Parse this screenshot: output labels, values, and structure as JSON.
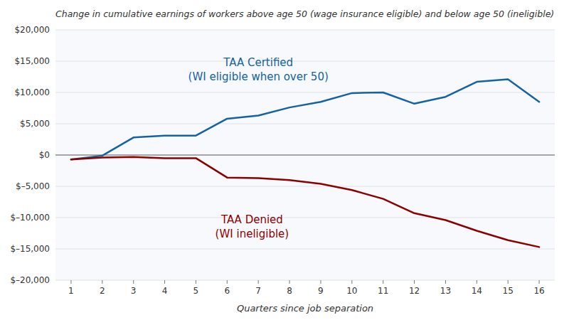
{
  "chart_data": {
    "type": "line",
    "title": "Change in cumulative earnings of workers above age 50 (wage insurance eligible) and below age 50 (ineligible)",
    "x_label": "Quarters since job separation",
    "x": [
      1,
      2,
      3,
      4,
      5,
      6,
      7,
      8,
      9,
      10,
      11,
      12,
      13,
      14,
      15,
      16
    ],
    "series": [
      {
        "color": "#1563A0",
        "values": [
          -700,
          -100,
          2800,
          3100,
          3100,
          5800,
          6300,
          7600,
          8500,
          9900,
          10000,
          8200,
          9300,
          11700,
          12100,
          8500
        ]
      },
      {
        "color": "#8B0000",
        "values": [
          -700,
          -400,
          -300,
          -500,
          -500,
          -3600,
          -3700,
          -4000,
          -4600,
          -5600,
          -7000,
          -9300,
          -10400,
          -12100,
          -13600,
          -14700
        ]
      }
    ],
    "annotations": [
      {
        "text": "TAA Certified\n(WI eligible when over 50)",
        "x": 7.0,
        "y": 11500,
        "color": "#1563A0"
      },
      {
        "text": "TAA Denied\n(WI ineligible)",
        "x": 6.8,
        "y": -9000,
        "color": "#8B0000"
      }
    ],
    "xlim": [
      0.5,
      16.5
    ],
    "xticks": [
      1,
      2,
      3,
      4,
      5,
      6,
      7,
      8,
      9,
      10,
      11,
      12,
      13,
      14,
      15,
      16
    ],
    "ylim": [
      -20000,
      20000
    ],
    "yticks": [
      {
        "value": -20000,
        "label": "$–20,000"
      },
      {
        "value": -15000,
        "label": "$–15,000"
      },
      {
        "value": -10000,
        "label": "$–10,000"
      },
      {
        "value": -5000,
        "label": "$–5,000"
      },
      {
        "value": 0,
        "label": "$0"
      },
      {
        "value": 5000,
        "label": "$5,000"
      },
      {
        "value": 10000,
        "label": "$10,000"
      },
      {
        "value": 15000,
        "label": "$15,000"
      },
      {
        "value": 20000,
        "label": "$20,000"
      }
    ],
    "grid": true
  }
}
